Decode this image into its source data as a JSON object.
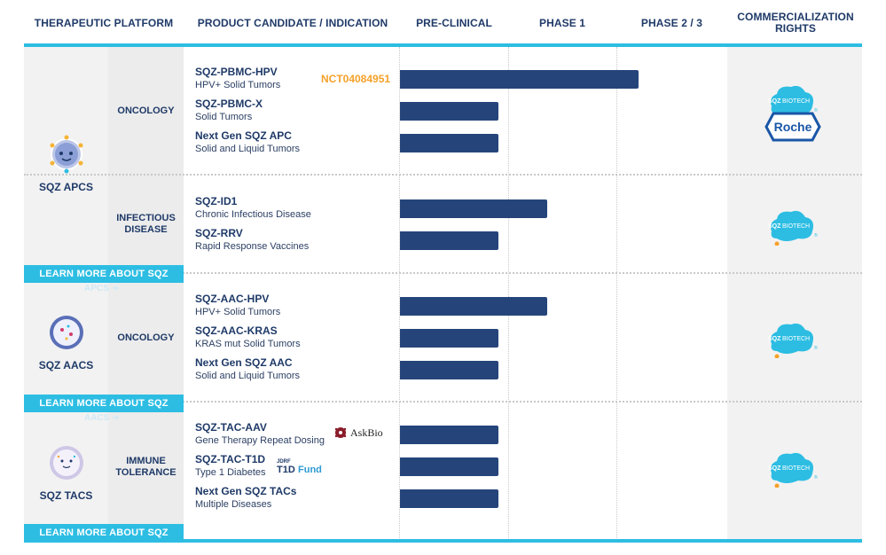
{
  "header": {
    "therapeutic_platform": "THERAPEUTIC PLATFORM",
    "product_candidate": "PRODUCT CANDIDATE / INDICATION",
    "pre_clinical": "PRE-CLINICAL",
    "phase1": "PHASE 1",
    "phase23": "PHASE 2 / 3",
    "commercialization": "COMMERCIALIZATION RIGHTS"
  },
  "platforms": [
    {
      "name": "SQZ APCS",
      "learn_more": "LEARN MORE ABOUT SQZ"
    },
    {
      "name": "SQZ AACS",
      "learn_more": "LEARN MORE ABOUT SQZ"
    },
    {
      "name": "SQZ TACS",
      "learn_more": "LEARN MORE ABOUT SQZ"
    }
  ],
  "indications": {
    "oncology_1": "ONCOLOGY",
    "infectious_disease": "INFECTIOUS DISEASE",
    "oncology_2": "ONCOLOGY",
    "immune_tolerance": "IMMUNE TOLERANCE"
  },
  "products": [
    {
      "name": "SQZ-PBMC-HPV",
      "indication": "HPV+ Solid Tumors",
      "progress": 0.73
    },
    {
      "name": "SQZ-PBMC-X",
      "indication": "Solid Tumors",
      "progress": 0.3
    },
    {
      "name": "Next Gen SQZ APC",
      "indication": "Solid and Liquid Tumors",
      "progress": 0.3
    },
    {
      "name": "SQZ-ID1",
      "indication": "Chronic Infectious Disease",
      "progress": 0.45
    },
    {
      "name": "SQZ-RRV",
      "indication": "Rapid Response Vaccines",
      "progress": 0.3
    },
    {
      "name": "SQZ-AAC-HPV",
      "indication": "HPV+ Solid Tumors",
      "progress": 0.45
    },
    {
      "name": "SQZ-AAC-KRAS",
      "indication": "KRAS mut Solid Tumors",
      "progress": 0.3
    },
    {
      "name": "Next Gen SQZ AAC",
      "indication": "Solid and Liquid Tumors",
      "progress": 0.3
    },
    {
      "name": "SQZ-TAC-AAV",
      "indication": "Gene Therapy Repeat Dosing",
      "progress": 0.3
    },
    {
      "name": "SQZ-TAC-T1D",
      "indication": "Type 1 Diabetes",
      "progress": 0.3
    },
    {
      "name": "Next Gen SQZ TACs",
      "indication": "Multiple Diseases",
      "progress": 0.3
    }
  ],
  "trial_id": "NCT04084951",
  "partners": {
    "sqz_logo_text": "SQZBIOTECH",
    "roche": "Roche",
    "askbio": "AskBio",
    "jdrf": "JDRF",
    "t1dfund": "T1DFund"
  },
  "colors": {
    "accent": "#2dbde3",
    "bar": "#25457a",
    "text_dark": "#1f3a68",
    "nct_orange": "#f5a12a",
    "band": "#f2f2f2"
  }
}
